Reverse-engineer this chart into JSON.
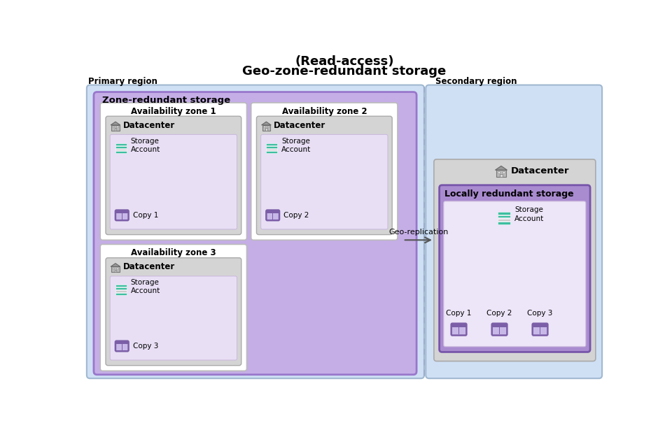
{
  "title_line1": "(Read-access)",
  "title_line2": "Geo-zone-redundant storage",
  "primary_label": "Primary region",
  "secondary_label": "Secondary region",
  "zrs_label": "Zone-redundant storage",
  "lrs_label": "Locally redundant storage",
  "datacenter_label": "Datacenter",
  "storage_account_label": "Storage\nAccount",
  "geo_replication_label": "Geo-replication",
  "az_labels": [
    "Availability zone 1",
    "Availability zone 2",
    "Availability zone 3"
  ],
  "copy_labels": [
    "Copy 1",
    "Copy 2",
    "Copy 3"
  ],
  "bg_color": "#ffffff",
  "primary_region_color": "#cfe0f5",
  "secondary_region_color": "#cfe0f5",
  "zrs_box_color": "#c5aee6",
  "az_box_color": "#ffffff",
  "datacenter_box_color": "#d4d4d4",
  "storage_inner_box_color": "#e8dff5",
  "lrs_box_color": "#a98bd0",
  "lrs_inner_box_color": "#ede5f8",
  "secondary_datacenter_box_color": "#d4d4d4",
  "storage_bar_colors": [
    "#3dbfa0",
    "#3dbfa0",
    "#cccccc",
    "#3dbfa0"
  ],
  "copy_icon_purple": "#7b5ea7",
  "copy_icon_bg": "#c8b8e8",
  "copy_bar_light": "#d4c4ee",
  "arrow_color": "#555555",
  "region_border_color": "#a0b8d0",
  "zrs_border_color": "#9977cc",
  "az_border_color": "#bbbbbb",
  "dc_border_color": "#aaaaaa",
  "lrs_border_color": "#7755aa"
}
